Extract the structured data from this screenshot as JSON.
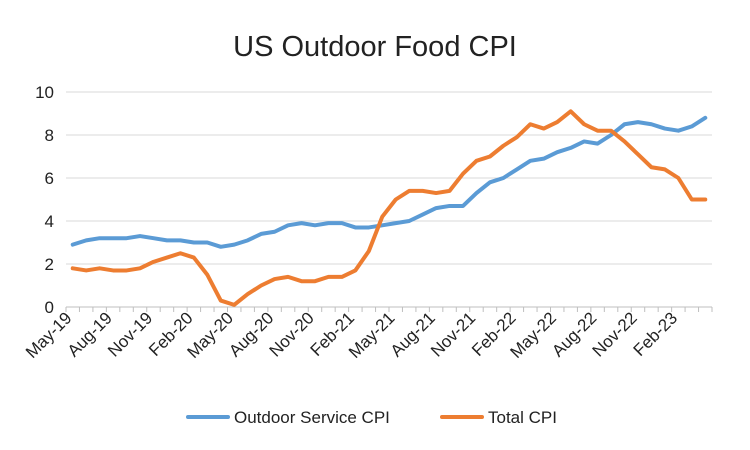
{
  "chart_data": {
    "type": "line",
    "title": "US Outdoor Food CPI",
    "xlabel": "",
    "ylabel": "",
    "ylim": [
      0,
      10
    ],
    "yticks": [
      "0",
      "2",
      "4",
      "6",
      "8",
      "10"
    ],
    "grid": true,
    "legend_position": "bottom",
    "x_tick_labels": [
      "May-19",
      "Aug-19",
      "Nov-19",
      "Feb-20",
      "May-20",
      "Aug-20",
      "Nov-20",
      "Feb-21",
      "May-21",
      "Aug-21",
      "Nov-21",
      "Feb-22",
      "May-22",
      "Aug-22",
      "Nov-22",
      "Feb-23"
    ],
    "x": [
      "May-19",
      "Jun-19",
      "Jul-19",
      "Aug-19",
      "Sep-19",
      "Oct-19",
      "Nov-19",
      "Dec-19",
      "Jan-20",
      "Feb-20",
      "Mar-20",
      "Apr-20",
      "May-20",
      "Jun-20",
      "Jul-20",
      "Aug-20",
      "Sep-20",
      "Oct-20",
      "Nov-20",
      "Dec-20",
      "Jan-21",
      "Feb-21",
      "Mar-21",
      "Apr-21",
      "May-21",
      "Jun-21",
      "Jul-21",
      "Aug-21",
      "Sep-21",
      "Oct-21",
      "Nov-21",
      "Dec-21",
      "Jan-22",
      "Feb-22",
      "Mar-22",
      "Apr-22",
      "May-22",
      "Jun-22",
      "Jul-22",
      "Aug-22",
      "Sep-22",
      "Oct-22",
      "Nov-22",
      "Dec-22",
      "Jan-23",
      "Feb-23",
      "Mar-23",
      "Apr-23"
    ],
    "series": [
      {
        "name": "Outdoor Service CPI",
        "color": "#5b9bd5",
        "values": [
          2.9,
          3.1,
          3.2,
          3.2,
          3.2,
          3.3,
          3.2,
          3.1,
          3.1,
          3.0,
          3.0,
          2.8,
          2.9,
          3.1,
          3.4,
          3.5,
          3.8,
          3.9,
          3.8,
          3.9,
          3.9,
          3.7,
          3.7,
          3.8,
          3.9,
          4.0,
          4.3,
          4.6,
          4.7,
          4.7,
          5.3,
          5.8,
          6.0,
          6.4,
          6.8,
          6.9,
          7.2,
          7.4,
          7.7,
          7.6,
          8.0,
          8.5,
          8.6,
          8.5,
          8.3,
          8.2,
          8.4,
          8.8
        ]
      },
      {
        "name": "Total CPI",
        "color": "#ed7d31",
        "values": [
          1.8,
          1.7,
          1.8,
          1.7,
          1.7,
          1.8,
          2.1,
          2.3,
          2.5,
          2.3,
          1.5,
          0.3,
          0.1,
          0.6,
          1.0,
          1.3,
          1.4,
          1.2,
          1.2,
          1.4,
          1.4,
          1.7,
          2.6,
          4.2,
          5.0,
          5.4,
          5.4,
          5.3,
          5.4,
          6.2,
          6.8,
          7.0,
          7.5,
          7.9,
          8.5,
          8.3,
          8.6,
          9.1,
          8.5,
          8.2,
          8.2,
          7.7,
          7.1,
          6.5,
          6.4,
          6.0,
          5.0,
          5.0
        ]
      }
    ]
  }
}
